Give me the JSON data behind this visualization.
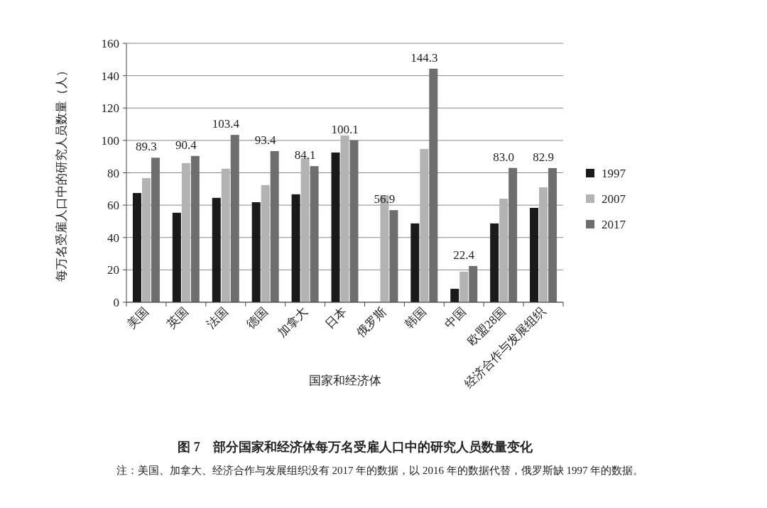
{
  "chart_data": {
    "type": "bar",
    "title": "图 7　部分国家和经济体每万名受雇人口中的研究人员数量变化",
    "xlabel": "国家和经济体",
    "ylabel": "每万名受雇人口中的研究人员数量（人）",
    "annotations": [
      "注：美国、加拿大、经济合作与发展组织没有 2017 年的数据，以 2016 年的数据代替，俄罗斯缺 1997 年的数据。"
    ],
    "categories": [
      "美国",
      "英国",
      "法国",
      "德国",
      "加拿大",
      "日本",
      "俄罗斯",
      "韩国",
      "中国",
      "欧盟28国",
      "经济合作与发展组织"
    ],
    "series": [
      {
        "name": "1997",
        "color": "#1a1a1a",
        "values": [
          67.5,
          55.3,
          64.5,
          61.8,
          66.7,
          92.5,
          null,
          48.7,
          8.3,
          48.7,
          58.3
        ]
      },
      {
        "name": "2007",
        "color": "#b3b3b3",
        "values": [
          76.7,
          86,
          82.5,
          72.4,
          89,
          103,
          66.2,
          94.7,
          18.9,
          64,
          71
        ]
      },
      {
        "name": "2017",
        "color": "#6e6e6e",
        "values": [
          89.3,
          90.4,
          103.4,
          93.4,
          84.1,
          100.1,
          56.9,
          144.3,
          22.4,
          83.0,
          82.9
        ],
        "value_labels": [
          "89.3",
          "90.4",
          "103.4",
          "93.4",
          "84.1",
          "100.1",
          "56.9",
          "144.3",
          "22.4",
          "83.0",
          "82.9"
        ]
      }
    ],
    "ylim": [
      0,
      160
    ],
    "yticks": [
      0,
      20,
      40,
      60,
      80,
      100,
      120,
      140,
      160
    ],
    "grid": "y",
    "legend": "right"
  }
}
